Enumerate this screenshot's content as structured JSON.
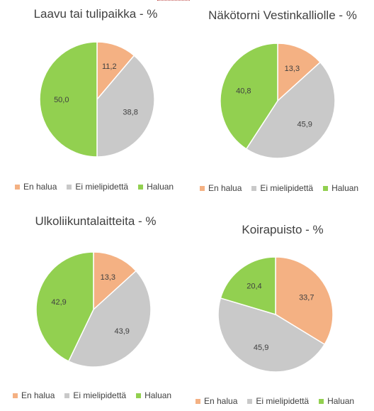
{
  "colors": {
    "en_halua": "#f4b183",
    "ei_mielipidetta": "#c9c9c9",
    "haluan": "#92d050"
  },
  "chart_data": [
    {
      "type": "pie",
      "title": "Laavu tai tulipaikka - %",
      "categories": [
        "En halua",
        "Ei mielipidettä",
        "Haluan"
      ],
      "values": [
        11.2,
        38.8,
        50.0
      ],
      "value_labels": [
        "11,2",
        "38,8",
        "50,0"
      ],
      "legend": "bottom"
    },
    {
      "type": "pie",
      "title": "Näkötorni Vestinkalliolle - %",
      "categories": [
        "En halua",
        "Ei mielipidettä",
        "Haluan"
      ],
      "values": [
        13.3,
        45.9,
        40.8
      ],
      "value_labels": [
        "13,3",
        "45,9",
        "40,8"
      ],
      "legend": "bottom"
    },
    {
      "type": "pie",
      "title": "Ulkoliikuntalaitteita - %",
      "categories": [
        "En halua",
        "Ei mielipidettä",
        "Haluan"
      ],
      "values": [
        13.3,
        43.9,
        42.9
      ],
      "value_labels": [
        "13,3",
        "43,9",
        "42,9"
      ],
      "legend": "bottom"
    },
    {
      "type": "pie",
      "title": "Koirapuisto - %",
      "categories": [
        "En halua",
        "Ei mielipidettä",
        "Haluan"
      ],
      "values": [
        33.7,
        45.9,
        20.4
      ],
      "value_labels": [
        "33,7",
        "45,9",
        "20,4"
      ],
      "legend": "bottom"
    }
  ]
}
